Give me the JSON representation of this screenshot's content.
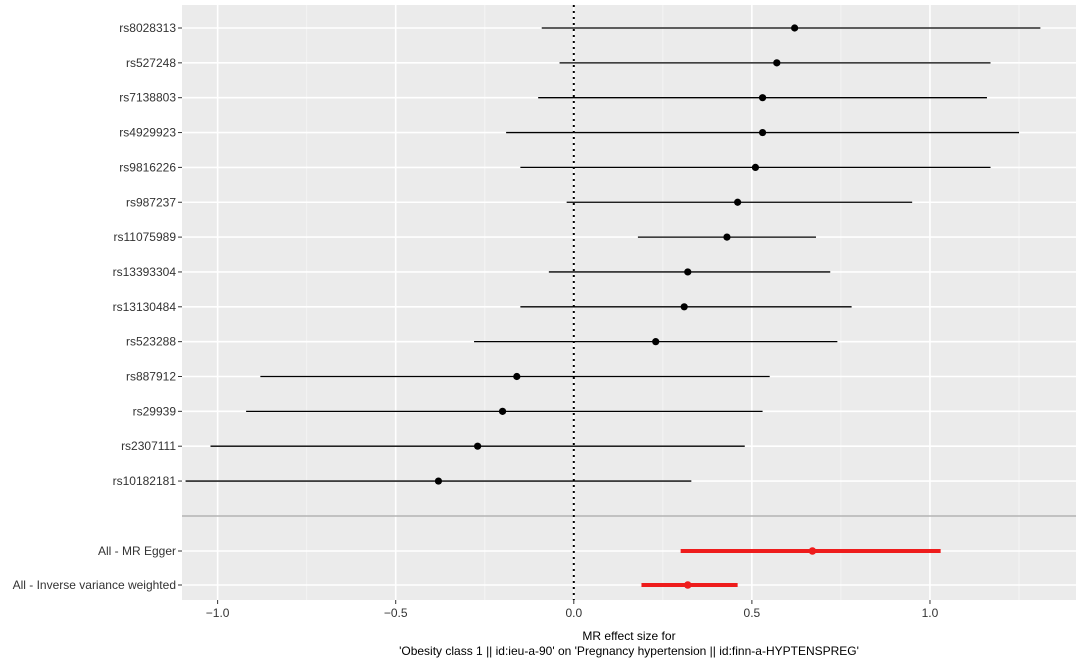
{
  "chart_data": {
    "type": "forest",
    "xlabel_line1": "MR effect size for",
    "xlabel_line2": "'Obesity class 1 || id:ieu-a-90' on 'Pregnancy hypertension || id:finn-a-HYPTENSPREG'",
    "xlim": [
      -1.1,
      1.41
    ],
    "x_ticks": [
      -1.0,
      -0.5,
      0.0,
      0.5,
      1.0
    ],
    "x_tick_labels": [
      "-1.0",
      "-0.5",
      "0.0",
      "0.5",
      "1.0"
    ],
    "reference_line": 0,
    "grid": true,
    "point_color": "#000000",
    "summary_color": "#ee1c1c",
    "panel_background": "#ebebeb",
    "snps": [
      {
        "label": "rs8028313",
        "estimate": 0.62,
        "lower": -0.09,
        "upper": 1.31
      },
      {
        "label": "rs527248",
        "estimate": 0.57,
        "lower": -0.04,
        "upper": 1.17
      },
      {
        "label": "rs7138803",
        "estimate": 0.53,
        "lower": -0.1,
        "upper": 1.16
      },
      {
        "label": "rs4929923",
        "estimate": 0.53,
        "lower": -0.19,
        "upper": 1.25
      },
      {
        "label": "rs9816226",
        "estimate": 0.51,
        "lower": -0.15,
        "upper": 1.17
      },
      {
        "label": "rs987237",
        "estimate": 0.46,
        "lower": -0.02,
        "upper": 0.95
      },
      {
        "label": "rs11075989",
        "estimate": 0.43,
        "lower": 0.18,
        "upper": 0.68
      },
      {
        "label": "rs13393304",
        "estimate": 0.32,
        "lower": -0.07,
        "upper": 0.72
      },
      {
        "label": "rs13130484",
        "estimate": 0.31,
        "lower": -0.15,
        "upper": 0.78
      },
      {
        "label": "rs523288",
        "estimate": 0.23,
        "lower": -0.28,
        "upper": 0.74
      },
      {
        "label": "rs887912",
        "estimate": -0.16,
        "lower": -0.88,
        "upper": 0.55
      },
      {
        "label": "rs29939",
        "estimate": -0.2,
        "lower": -0.92,
        "upper": 0.53
      },
      {
        "label": "rs2307111",
        "estimate": -0.27,
        "lower": -1.02,
        "upper": 0.48
      },
      {
        "label": "rs10182181",
        "estimate": -0.38,
        "lower": -1.09,
        "upper": 0.33
      }
    ],
    "summary": [
      {
        "label": "All - MR Egger",
        "estimate": 0.67,
        "lower": 0.3,
        "upper": 1.03
      },
      {
        "label": "All - Inverse variance weighted",
        "estimate": 0.32,
        "lower": 0.19,
        "upper": 0.46
      }
    ]
  }
}
